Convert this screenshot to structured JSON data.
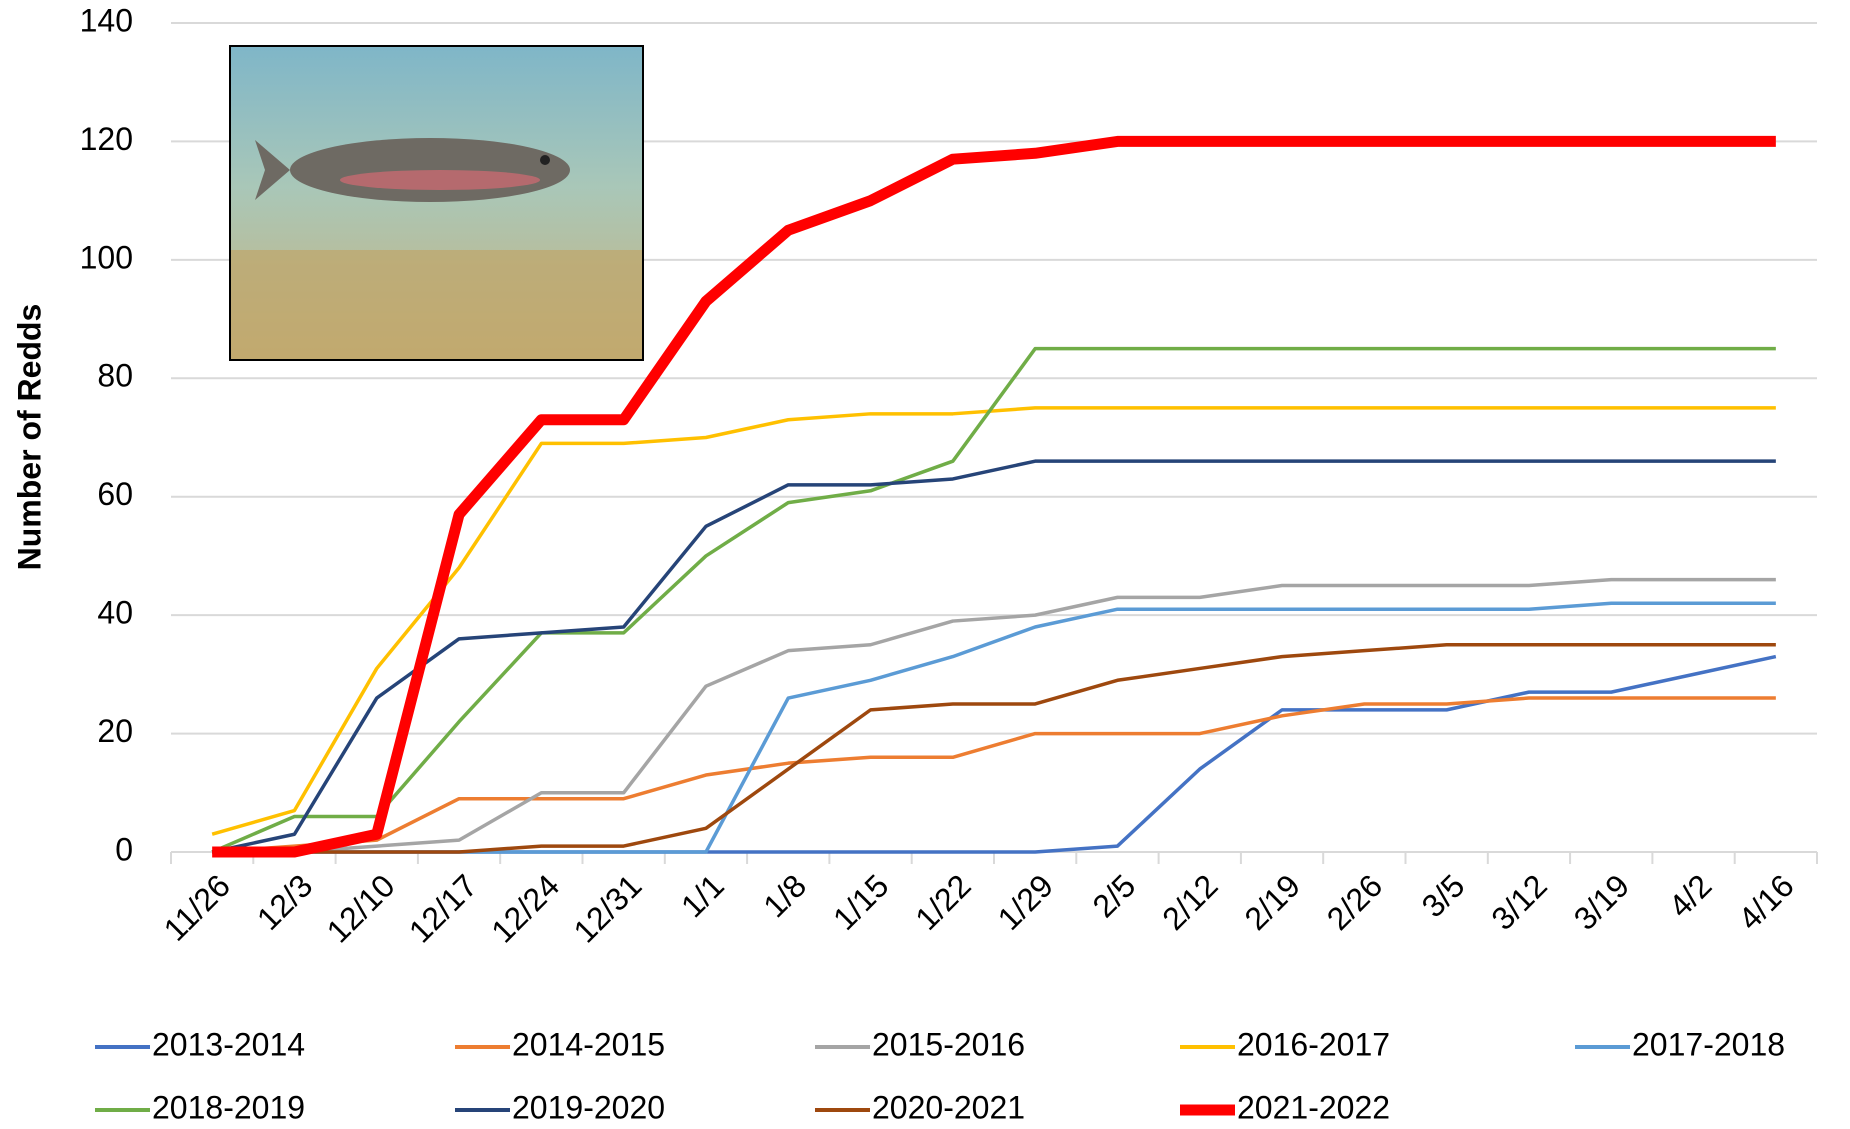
{
  "chart_data": {
    "type": "line",
    "y_label": "Number of Redds",
    "categories": [
      "11/26",
      "12/3",
      "12/10",
      "12/17",
      "12/24",
      "12/31",
      "1/1",
      "1/8",
      "1/15",
      "1/22",
      "1/29",
      "2/5",
      "2/12",
      "2/19",
      "2/26",
      "3/5",
      "3/12",
      "3/19",
      "4/2",
      "4/16"
    ],
    "ylim": [
      0,
      140
    ],
    "yticks": [
      0,
      20,
      40,
      60,
      80,
      100,
      120,
      140
    ],
    "grid": true,
    "series": [
      {
        "name": "2013-2014",
        "color": "#4472c4",
        "values": [
          0,
          0,
          0,
          0,
          0,
          0,
          0,
          0,
          0,
          0,
          0,
          1,
          14,
          24,
          24,
          24,
          27,
          27,
          30,
          33
        ]
      },
      {
        "name": "2014-2015",
        "color": "#ed7d31",
        "values": [
          0,
          1,
          2,
          9,
          9,
          9,
          13,
          15,
          16,
          16,
          20,
          20,
          20,
          23,
          25,
          25,
          26,
          26,
          26,
          26
        ]
      },
      {
        "name": "2015-2016",
        "color": "#a5a5a5",
        "values": [
          0,
          0,
          1,
          2,
          10,
          10,
          28,
          34,
          35,
          39,
          40,
          43,
          43,
          45,
          45,
          45,
          45,
          46,
          46,
          46
        ]
      },
      {
        "name": "2016-2017",
        "color": "#ffc000",
        "values": [
          3,
          7,
          31,
          48,
          69,
          69,
          70,
          73,
          74,
          74,
          75,
          75,
          75,
          75,
          75,
          75,
          75,
          75,
          75,
          75
        ]
      },
      {
        "name": "2017-2018",
        "color": "#5b9bd5",
        "values": [
          0,
          0,
          0,
          0,
          0,
          0,
          0,
          26,
          29,
          33,
          38,
          41,
          41,
          41,
          41,
          41,
          41,
          42,
          42,
          42
        ]
      },
      {
        "name": "2018-2019",
        "color": "#70ad47",
        "values": [
          0,
          6,
          6,
          22,
          37,
          37,
          50,
          59,
          61,
          66,
          85,
          85,
          85,
          85,
          85,
          85,
          85,
          85,
          85,
          85
        ]
      },
      {
        "name": "2019-2020",
        "color": "#264478",
        "values": [
          0,
          3,
          26,
          36,
          37,
          38,
          55,
          62,
          62,
          63,
          66,
          66,
          66,
          66,
          66,
          66,
          66,
          66,
          66,
          66
        ]
      },
      {
        "name": "2020-2021",
        "color": "#9e480e",
        "values": [
          0,
          0,
          0,
          0,
          1,
          1,
          4,
          14,
          24,
          25,
          25,
          29,
          31,
          33,
          34,
          35,
          35,
          35,
          35,
          35
        ]
      },
      {
        "name": "2021-2022",
        "color": "#ff0000",
        "line_width": 11,
        "values": [
          0,
          0,
          3,
          57,
          73,
          73,
          93,
          105,
          110,
          117,
          118,
          120,
          120,
          120,
          120,
          120,
          120,
          120,
          120,
          120
        ]
      }
    ]
  }
}
